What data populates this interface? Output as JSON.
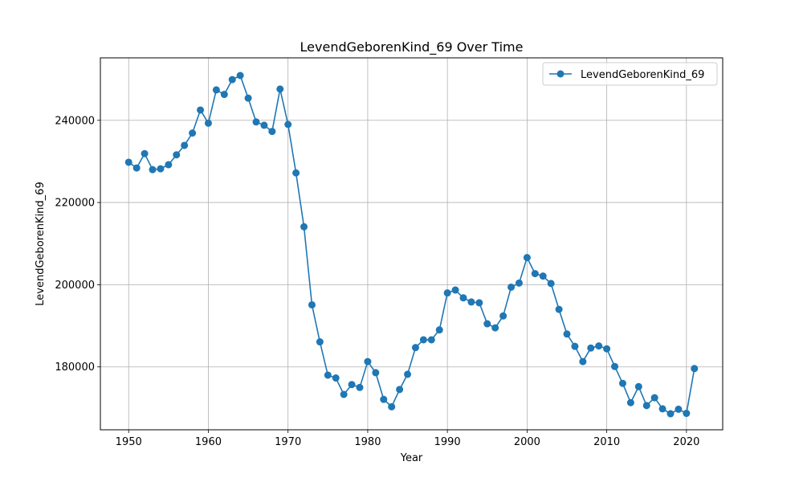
{
  "chart_data": {
    "type": "line",
    "title": "LevendGeborenKind_69 Over Time",
    "xlabel": "Year",
    "ylabel": "LevendGeborenKind_69",
    "xlim": [
      1946.45,
      2024.55
    ],
    "ylim": [
      164700,
      255200
    ],
    "xticks": [
      1950,
      1960,
      1970,
      1980,
      1990,
      2000,
      2010,
      2020
    ],
    "yticks": [
      180000,
      200000,
      220000,
      240000
    ],
    "grid": true,
    "legend": {
      "placement": "top-right",
      "entries": [
        "LevendGeborenKind_69"
      ]
    },
    "color": "#1f77b4",
    "series": [
      {
        "name": "LevendGeborenKind_69",
        "x": [
          1950,
          1951,
          1952,
          1953,
          1954,
          1955,
          1956,
          1957,
          1958,
          1959,
          1960,
          1961,
          1962,
          1963,
          1964,
          1965,
          1966,
          1967,
          1968,
          1969,
          1970,
          1971,
          1972,
          1973,
          1974,
          1975,
          1976,
          1977,
          1978,
          1979,
          1980,
          1981,
          1982,
          1983,
          1984,
          1985,
          1986,
          1987,
          1988,
          1989,
          1990,
          1991,
          1992,
          1993,
          1994,
          1995,
          1996,
          1997,
          1998,
          1999,
          2000,
          2001,
          2002,
          2003,
          2004,
          2005,
          2006,
          2007,
          2008,
          2009,
          2010,
          2011,
          2012,
          2013,
          2014,
          2015,
          2016,
          2017,
          2018,
          2019,
          2020,
          2021
        ],
        "values": [
          229800,
          228400,
          231900,
          228000,
          228200,
          229200,
          231600,
          233900,
          236900,
          242500,
          239300,
          247400,
          246300,
          249900,
          250900,
          245400,
          239600,
          238800,
          237300,
          247600,
          239000,
          227200,
          214100,
          195100,
          186100,
          178000,
          177300,
          173300,
          175700,
          175000,
          181300,
          178600,
          172100,
          170300,
          174500,
          178200,
          184700,
          186600,
          186600,
          189000,
          198000,
          198700,
          196800,
          195800,
          195600,
          190500,
          189500,
          192400,
          199400,
          200400,
          206600,
          202700,
          202100,
          200300,
          194000,
          188000,
          185000,
          181300,
          184600,
          185100,
          184400,
          180100,
          176000,
          171300,
          175200,
          170600,
          172500,
          169800,
          168600,
          169700,
          168700,
          179600
        ]
      }
    ]
  }
}
